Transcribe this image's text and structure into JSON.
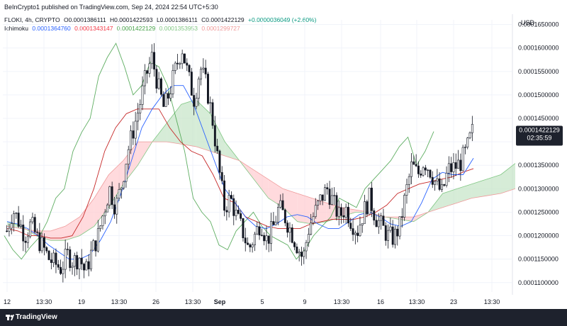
{
  "header": {
    "published": "BeInCrypto1 published on TradingView.com, Sep 24, 2024 22:54 UTC+5:30"
  },
  "legend": {
    "symbol": "FLOKI, 4h, CRYPTO",
    "open": "O0.0001386111",
    "high": "H0.0001422593",
    "low": "L0.0001386111",
    "close": "C0.0001422129",
    "change": "+0.0000036049 (+2.60%)",
    "indicator": "Ichimoku",
    "conversion": "0.0001364760",
    "base": "0.0001343147",
    "lagging": "0.0001422129",
    "lead_a": "0.0001353953",
    "lead_b": "0.0001299727"
  },
  "currency": "USD",
  "price_tag": {
    "value": "0.0001422129",
    "timer": "02:35:59"
  },
  "footer": {
    "brand": "TradingView"
  },
  "colors": {
    "up": "#131722",
    "down": "#131722",
    "conversion": "#2962ff",
    "base": "#c62828",
    "lagging": "#43a047",
    "cloud_bull": "#c8e6c9",
    "cloud_bear": "#ffcdd2",
    "price_tag": "#1e222d"
  },
  "chart_data": {
    "type": "candlestick",
    "title": "FLOKI, 4h, CRYPTO",
    "ylim": [
      0.000108,
      0.000166
    ],
    "y_ticks": [
      "0.0001100000",
      "0.0001150000",
      "0.0001200000",
      "0.0001250000",
      "0.0001300000",
      "0.0001350000",
      "0.0001400000",
      "0.0001450000",
      "0.0001500000",
      "0.0001550000",
      "0.0001600000",
      "0.0001650000"
    ],
    "x_ticks": [
      "12",
      "13:30",
      "19",
      "13:30",
      "26",
      "13:30",
      "Sep",
      "5",
      "9",
      "13:30",
      "16",
      "13:30",
      "23",
      "13:30"
    ],
    "close_path": [
      0.000121,
      0.0001255,
      0.000123,
      0.00012,
      0.0001225,
      0.0001195,
      0.0001175,
      0.000115,
      0.000114,
      0.000113,
      0.000116,
      0.0001145,
      0.0001155,
      0.000112,
      0.0001165,
      0.0001195,
      0.000125,
      0.00013,
      0.000126,
      0.000131,
      0.000138,
      0.000143,
      0.000148,
      0.000154,
      0.000158,
      0.000152,
      0.000147,
      0.000151,
      0.000156,
      0.00016,
      0.000154,
      0.000149,
      0.000156,
      0.000152,
      0.000145,
      0.000135,
      0.000126,
      0.000128,
      0.000124,
      0.000121,
      0.000117,
      0.00012,
      0.000123,
      0.000119,
      0.0001215,
      0.000126,
      0.000124,
      0.000121,
      0.000118,
      0.000115,
      0.000122,
      0.000125,
      0.000128,
      0.00013,
      0.000127,
      0.000124,
      0.000126,
      0.000123,
      0.000121,
      0.000125,
      0.000128,
      0.000124,
      0.000122,
      0.00012,
      0.0001195,
      0.000122,
      0.000129,
      0.000135,
      0.000133,
      0.000136,
      0.000134,
      0.000131,
      0.000129,
      0.000134,
      0.0001345,
      0.0001355,
      0.000138,
      0.0001422
    ],
    "conversion_line": [
      0.000123,
      0.0001225,
      0.0001215,
      0.00012,
      0.000118,
      0.0001165,
      0.000115,
      0.000115,
      0.000116,
      0.000119,
      0.000123,
      0.000129,
      0.000136,
      0.000143,
      0.000147,
      0.00015,
      0.000152,
      0.000152,
      0.000148,
      0.000142,
      0.000136,
      0.00013,
      0.000127,
      0.000124,
      0.000122,
      0.0001215,
      0.0001225,
      0.000124,
      0.0001245,
      0.000124,
      0.0001225,
      0.0001215,
      0.0001215,
      0.000123,
      0.0001245,
      0.000125,
      0.000124,
      0.0001225,
      0.000122,
      0.000123,
      0.000127,
      0.000132,
      0.0001335,
      0.000133,
      0.000133,
      0.0001365
    ],
    "base_line": [
      0.0001215,
      0.000121,
      0.00012,
      0.00012,
      0.0001195,
      0.0001195,
      0.00012,
      0.000124,
      0.00013,
      0.000138,
      0.000143,
      0.000146,
      0.000147,
      0.000147,
      0.000147,
      0.000143,
      0.00014,
      0.000138,
      0.000137,
      0.000133,
      0.000128,
      0.000127,
      0.000124,
      0.000123,
      0.000122,
      0.0001215,
      0.0001215,
      0.0001215,
      0.0001225,
      0.000123,
      0.0001235,
      0.0001235,
      0.0001235,
      0.000124,
      0.000125,
      0.0001265,
      0.000129,
      0.00013,
      0.000131,
      0.0001315,
      0.000132,
      0.0001325,
      0.0001335,
      0.0001343
    ],
    "lagging_span": [
      0.00012,
      0.000117,
      0.000115,
      0.0001175,
      0.0001195,
      0.000123,
      0.000128,
      0.00013,
      0.000138,
      0.000142,
      0.000145,
      0.000154,
      0.000158,
      0.000161,
      0.000156,
      0.00015,
      0.000152,
      0.000157,
      0.000156,
      0.000152,
      0.000145,
      0.000138,
      0.000128,
      0.000125,
      0.000123,
      0.000118,
      0.000117,
      0.000121,
      0.000123,
      0.000125,
      0.000122,
      0.00012,
      0.000119,
      0.000118,
      0.000115,
      0.000117,
      0.00012,
      0.000122,
      0.000124,
      0.000128,
      0.000127,
      0.000126,
      0.00013,
      0.000132,
      0.000134,
      0.000136,
      0.000139,
      0.000141,
      0.000135,
      0.000138,
      0.0001422
    ],
    "lead_a": [
      0.000123,
      0.000122,
      0.00012,
      0.000119,
      0.000119,
      0.00012,
      0.000122,
      0.000126,
      0.000131,
      0.000135,
      0.00014,
      0.000144,
      0.000148,
      0.000149,
      0.000146,
      0.00014,
      0.000136,
      0.000132,
      0.000128,
      0.000126,
      0.000123,
      0.0001225,
      0.000123,
      0.000124,
      0.000125,
      0.000125,
      0.000124,
      0.0001235,
      0.000123,
      0.000125,
      0.000129,
      0.00013,
      0.000131,
      0.000132,
      0.000133,
      0.0001354
    ],
    "lead_b": [
      0.000122,
      0.0001215,
      0.000121,
      0.000121,
      0.000122,
      0.000124,
      0.000128,
      0.000133,
      0.000136,
      0.00014,
      0.00014,
      0.00014,
      0.0001395,
      0.000139,
      0.000138,
      0.000137,
      0.000136,
      0.000134,
      0.000132,
      0.00013,
      0.000129,
      0.000128,
      0.000127,
      0.000126,
      0.0001255,
      0.000125,
      0.000124,
      0.000124,
      0.000124,
      0.000125,
      0.000126,
      0.000127,
      0.000128,
      0.0001285,
      0.000129,
      0.00013
    ]
  }
}
